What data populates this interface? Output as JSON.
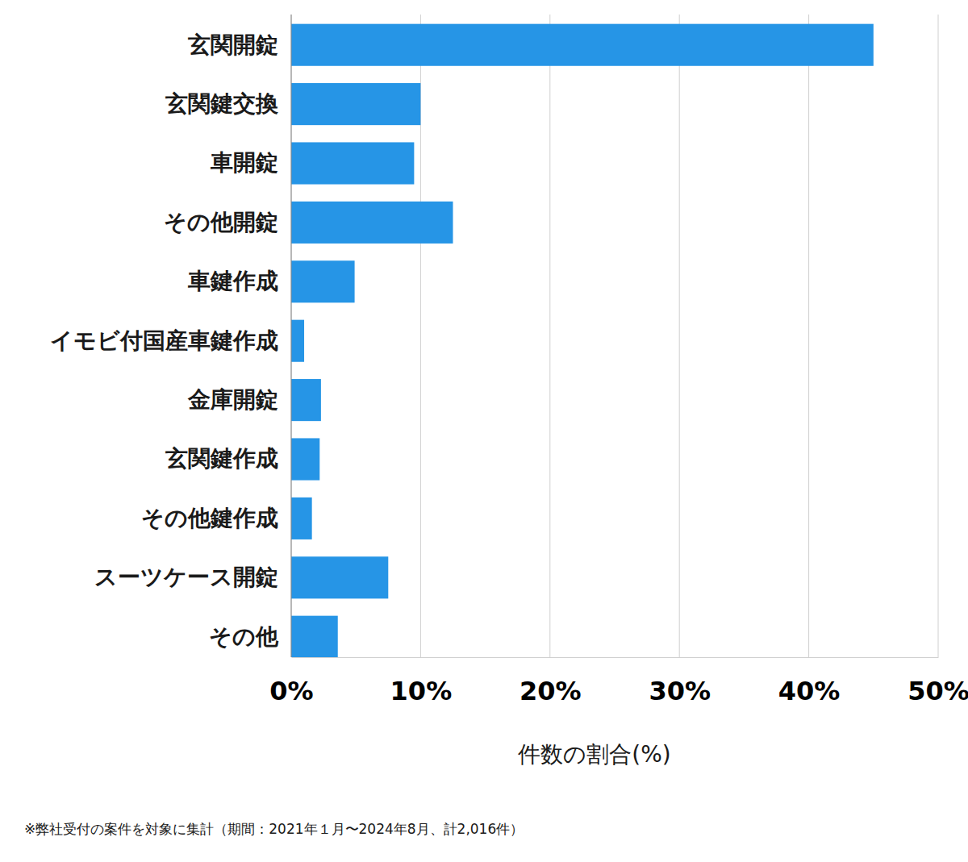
{
  "chart_data": {
    "type": "bar",
    "orientation": "horizontal",
    "categories": [
      "玄関開錠",
      "玄関鍵交換",
      "車開錠",
      "その他開錠",
      "車鍵作成",
      "イモビ付国産車鍵作成",
      "金庫開錠",
      "玄関鍵作成",
      "その他鍵作成",
      "スーツケース開錠",
      "その他"
    ],
    "values": [
      45.0,
      10.0,
      9.5,
      12.5,
      4.9,
      1.0,
      2.3,
      2.2,
      1.6,
      7.5,
      3.6
    ],
    "color": "#2695e6",
    "x_label": "件数の割合(%)",
    "xlim": [
      0,
      50
    ],
    "xticks": [
      {
        "value": 0,
        "label": "0%"
      },
      {
        "value": 10,
        "label": "10%"
      },
      {
        "value": 20,
        "label": "20%"
      },
      {
        "value": 30,
        "label": "30%"
      },
      {
        "value": 40,
        "label": "40%"
      },
      {
        "value": 50,
        "label": "50%"
      }
    ],
    "grid": true,
    "annotation": "※弊社受付の案件を対象に集計（期間：2021年１月〜2024年8月、計2,016件）"
  }
}
